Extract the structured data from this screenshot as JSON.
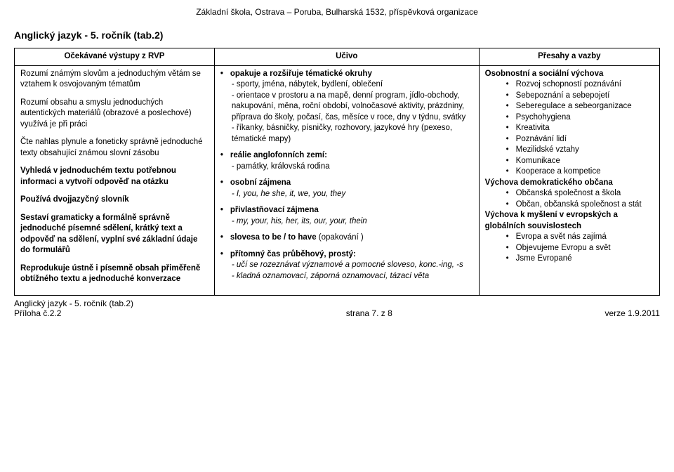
{
  "header": {
    "school": "Základní škola, Ostrava – Poruba, Bulharská 1532, příspěvková organizace"
  },
  "title": "Anglický jazyk - 5. ročník (tab.2)",
  "table": {
    "headers": [
      "Očekávané výstupy z RVP",
      "Učivo",
      "Přesahy a vazby"
    ],
    "col1": {
      "p1": "Rozumí známým slovům a jednoduchým větám se vztahem k osvojovaným tématům",
      "p2": "Rozumí obsahu a smyslu jednoduchých autentických materiálů (obrazové a poslechové) využívá je při práci",
      "p3": "Čte nahlas plynule a foneticky správně jednoduché texty obsahující známou slovní zásobu",
      "p4": "Vyhledá v jednoduchém textu potřebnou informaci a vytvoří odpověď na otázku",
      "p5": "Používá dvojjazyčný slovník",
      "p6": "Sestaví gramaticky a formálně správně jednoduché písemné sdělení, krátký text a odpověď na sdělení, vyplní své základní údaje do formulářů",
      "p7": "Reprodukuje ústně i písemně obsah přiměřeně obtížného textu  a jednoduché konverzace"
    },
    "col2": {
      "topic1_title": "opakuje a rozšiřuje tématické okruhy",
      "topic1_sub1": "- sporty, jména, nábytek, bydlení, oblečení",
      "topic1_sub2": "- orientace v prostoru a na mapě, denní program, jídlo-obchody, nakupování, měna, roční období, volnočasové aktivity, prázdniny, příprava do školy,  počasí, čas, měsíce v roce, dny v týdnu, svátky",
      "topic1_sub3": "- říkanky, básničky, písničky, rozhovory, jazykové hry (pexeso, tématické mapy)",
      "topic2_title": "reálie anglofonních zemí:",
      "topic2_sub1": "- památky, královská rodina",
      "topic3_title": "osobní zájmena",
      "topic3_sub1": "- I, you, he she, it, we, you, they",
      "topic4_title": "přivlastňovací zájmena",
      "topic4_sub1": "- my, your, his, her, its, our, your, thein",
      "topic5_title_pre": "slovesa  ",
      "topic5_title_bold": "to be / to have",
      "topic5_title_post": " (opakování )",
      "topic6_title": "přítomný čas průběhový, prostý:",
      "topic6_sub1": "- učí se rozeznávat významové a pomocné sloveso, konc.-ing, -s",
      "topic6_sub2": "- kladná oznamovací, záporná oznamovací, tázací věta"
    },
    "col3": {
      "h1": "Osobnostní a sociální výchova",
      "h1_items": [
        "Rozvoj schopností poznávání",
        "Sebepoznání a sebepojetí",
        "Seberegulace a sebeorganizace",
        "Psychohygiena",
        "Kreativita",
        "Poznávání lidí",
        "Mezilidské vztahy",
        "Komunikace",
        "Kooperace a kompetice"
      ],
      "h2": "Výchova demokratického občana",
      "h2_items": [
        "Občanská společnost a škola",
        "Občan, občanská společnost a stát"
      ],
      "h3": "Výchova k myšlení v evropských a globálních souvislostech",
      "h3_items": [
        "Evropa a svět nás zajímá",
        "Objevujeme Evropu a svět",
        "Jsme Evropané"
      ]
    }
  },
  "footer": {
    "left1": "Anglický jazyk - 5. ročník (tab.2)",
    "left2": "Příloha č.2.2",
    "center": "strana 7. z 8",
    "right": "verze 1.9.2011"
  }
}
